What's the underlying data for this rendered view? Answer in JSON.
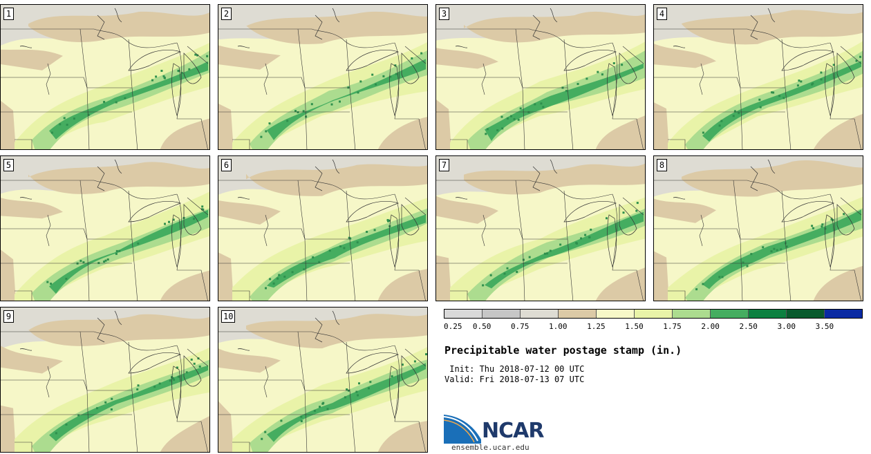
{
  "panels": [
    {
      "label": "1"
    },
    {
      "label": "2"
    },
    {
      "label": "3"
    },
    {
      "label": "4"
    },
    {
      "label": "5"
    },
    {
      "label": "6"
    },
    {
      "label": "7"
    },
    {
      "label": "8"
    },
    {
      "label": "9"
    },
    {
      "label": "10"
    }
  ],
  "colorbar": {
    "colors": [
      "#d9d9d9",
      "#c6c6c6",
      "#dedcd3",
      "#dccaa6",
      "#f7f8c8",
      "#e9f3a8",
      "#acdc8f",
      "#45ad60",
      "#0d8040",
      "#095a2d",
      "#0a2aa3"
    ],
    "ticks": [
      "0.25",
      "0.50",
      "0.75",
      "1.00",
      "1.25",
      "1.50",
      "1.75",
      "2.00",
      "2.50",
      "3.00",
      "3.50"
    ]
  },
  "title": "Precipitable water postage stamp (in.)",
  "init": " Init: Thu 2018-07-12 00 UTC",
  "valid": "Valid: Fri 2018-07-13 07 UTC",
  "logo": {
    "text": "NCAR"
  },
  "site": "ensemble.ucar.edu"
}
